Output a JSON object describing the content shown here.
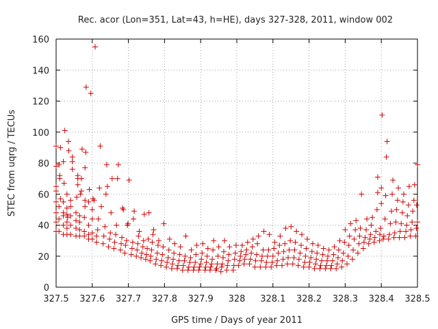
{
  "chart_data": {
    "type": "scatter",
    "title": "Rec. acor (Lon=351, Lat=43, h=HE), days 327-328, 2011, window 002",
    "xlabel": "GPS time / Days of year 2011",
    "ylabel": "STEC from uqrg / TECUs",
    "xlim": [
      327.5,
      328.5
    ],
    "ylim": [
      0,
      160
    ],
    "xticks": [
      327.5,
      327.6,
      327.7,
      327.8,
      327.9,
      328.0,
      328.1,
      328.2,
      328.3,
      328.4,
      328.5
    ],
    "xtick_labels": [
      "327.5",
      "327.6",
      "327.7",
      "327.8",
      "327.9",
      "328",
      "328.1",
      "328.2",
      "328.3",
      "328.4",
      "328.5"
    ],
    "yticks": [
      0,
      20,
      40,
      60,
      80,
      100,
      120,
      140,
      160
    ],
    "ytick_labels": [
      "0",
      "20",
      "40",
      "60",
      "80",
      "100",
      "120",
      "140",
      "160"
    ],
    "grid": true,
    "marker": "+",
    "color": "#cc0000",
    "points": [
      [
        327.5,
        36
      ],
      [
        327.5,
        42
      ],
      [
        327.5,
        48
      ],
      [
        327.5,
        55
      ],
      [
        327.5,
        62
      ],
      [
        327.5,
        65
      ],
      [
        327.5,
        78
      ],
      [
        327.5,
        91
      ],
      [
        327.508,
        36
      ],
      [
        327.508,
        44
      ],
      [
        327.508,
        52
      ],
      [
        327.508,
        79
      ],
      [
        327.51,
        72
      ],
      [
        327.51,
        70
      ],
      [
        327.512,
        57
      ],
      [
        327.512,
        90
      ],
      [
        327.52,
        34
      ],
      [
        327.52,
        40
      ],
      [
        327.52,
        46
      ],
      [
        327.52,
        48
      ],
      [
        327.52,
        55
      ],
      [
        327.52,
        81
      ],
      [
        327.522,
        67
      ],
      [
        327.524,
        101
      ],
      [
        327.53,
        34
      ],
      [
        327.53,
        38
      ],
      [
        327.53,
        42
      ],
      [
        327.53,
        47
      ],
      [
        327.53,
        51
      ],
      [
        327.53,
        60
      ],
      [
        327.532,
        45
      ],
      [
        327.534,
        94
      ],
      [
        327.535,
        88
      ],
      [
        327.54,
        34
      ],
      [
        327.54,
        40
      ],
      [
        327.54,
        46
      ],
      [
        327.54,
        52
      ],
      [
        327.54,
        56
      ],
      [
        327.545,
        76
      ],
      [
        327.545,
        81
      ],
      [
        327.545,
        84
      ],
      [
        327.555,
        33
      ],
      [
        327.555,
        38
      ],
      [
        327.555,
        43
      ],
      [
        327.555,
        48
      ],
      [
        327.557,
        58
      ],
      [
        327.56,
        66
      ],
      [
        327.56,
        70
      ],
      [
        327.56,
        72
      ],
      [
        327.565,
        33
      ],
      [
        327.565,
        37
      ],
      [
        327.565,
        42
      ],
      [
        327.565,
        46
      ],
      [
        327.567,
        60
      ],
      [
        327.57,
        62
      ],
      [
        327.57,
        70
      ],
      [
        327.572,
        89
      ],
      [
        327.578,
        33
      ],
      [
        327.578,
        36
      ],
      [
        327.578,
        45
      ],
      [
        327.58,
        52
      ],
      [
        327.58,
        56
      ],
      [
        327.58,
        77
      ],
      [
        327.582,
        87
      ],
      [
        327.583,
        129
      ],
      [
        327.59,
        31
      ],
      [
        327.59,
        34
      ],
      [
        327.59,
        40
      ],
      [
        327.59,
        55
      ],
      [
        327.592,
        63
      ],
      [
        327.596,
        125
      ],
      [
        327.6,
        31
      ],
      [
        327.6,
        35
      ],
      [
        327.6,
        44
      ],
      [
        327.6,
        50
      ],
      [
        327.602,
        57
      ],
      [
        327.608,
        155
      ],
      [
        327.605,
        56
      ],
      [
        327.612,
        29
      ],
      [
        327.612,
        33
      ],
      [
        327.615,
        37
      ],
      [
        327.617,
        44
      ],
      [
        327.62,
        64
      ],
      [
        327.622,
        91
      ],
      [
        327.625,
        52
      ],
      [
        327.63,
        28
      ],
      [
        327.632,
        33
      ],
      [
        327.635,
        39
      ],
      [
        327.638,
        60
      ],
      [
        327.64,
        79
      ],
      [
        327.642,
        65
      ],
      [
        327.645,
        26
      ],
      [
        327.648,
        31
      ],
      [
        327.65,
        35
      ],
      [
        327.652,
        48
      ],
      [
        327.655,
        70
      ],
      [
        327.66,
        25
      ],
      [
        327.662,
        29
      ],
      [
        327.665,
        34
      ],
      [
        327.667,
        40
      ],
      [
        327.67,
        70
      ],
      [
        327.672,
        79
      ],
      [
        327.678,
        24
      ],
      [
        327.68,
        28
      ],
      [
        327.682,
        32
      ],
      [
        327.684,
        51
      ],
      [
        327.686,
        50
      ],
      [
        327.69,
        22
      ],
      [
        327.692,
        27
      ],
      [
        327.695,
        30
      ],
      [
        327.697,
        40
      ],
      [
        327.699,
        41
      ],
      [
        327.702,
        69
      ],
      [
        327.708,
        21
      ],
      [
        327.71,
        25
      ],
      [
        327.712,
        29
      ],
      [
        327.714,
        44
      ],
      [
        327.716,
        49
      ],
      [
        327.722,
        20
      ],
      [
        327.724,
        24
      ],
      [
        327.726,
        28
      ],
      [
        327.728,
        33
      ],
      [
        327.73,
        36
      ],
      [
        327.735,
        19
      ],
      [
        327.737,
        22
      ],
      [
        327.74,
        26
      ],
      [
        327.742,
        30
      ],
      [
        327.744,
        47
      ],
      [
        327.748,
        18
      ],
      [
        327.75,
        21
      ],
      [
        327.752,
        25
      ],
      [
        327.755,
        31
      ],
      [
        327.757,
        48
      ],
      [
        327.76,
        17
      ],
      [
        327.762,
        20
      ],
      [
        327.764,
        24
      ],
      [
        327.766,
        29
      ],
      [
        327.768,
        34
      ],
      [
        327.77,
        37
      ],
      [
        327.775,
        15
      ],
      [
        327.777,
        18
      ],
      [
        327.78,
        22
      ],
      [
        327.782,
        27
      ],
      [
        327.784,
        30
      ],
      [
        327.79,
        14
      ],
      [
        327.792,
        17
      ],
      [
        327.794,
        21
      ],
      [
        327.796,
        26
      ],
      [
        327.798,
        41
      ],
      [
        327.805,
        13
      ],
      [
        327.807,
        16
      ],
      [
        327.81,
        19
      ],
      [
        327.812,
        24
      ],
      [
        327.814,
        31
      ],
      [
        327.82,
        12
      ],
      [
        327.822,
        15
      ],
      [
        327.824,
        18
      ],
      [
        327.826,
        22
      ],
      [
        327.828,
        28
      ],
      [
        327.835,
        12
      ],
      [
        327.837,
        14
      ],
      [
        327.84,
        17
      ],
      [
        327.842,
        21
      ],
      [
        327.844,
        26
      ],
      [
        327.85,
        11
      ],
      [
        327.852,
        14
      ],
      [
        327.855,
        17
      ],
      [
        327.857,
        20
      ],
      [
        327.859,
        33
      ],
      [
        327.865,
        11
      ],
      [
        327.867,
        13
      ],
      [
        327.87,
        16
      ],
      [
        327.872,
        19
      ],
      [
        327.874,
        24
      ],
      [
        327.88,
        11
      ],
      [
        327.882,
        13
      ],
      [
        327.885,
        16
      ],
      [
        327.887,
        21
      ],
      [
        327.889,
        27
      ],
      [
        327.895,
        11
      ],
      [
        327.897,
        13
      ],
      [
        327.9,
        15
      ],
      [
        327.902,
        18
      ],
      [
        327.904,
        22
      ],
      [
        327.906,
        28
      ],
      [
        327.912,
        11
      ],
      [
        327.914,
        13
      ],
      [
        327.916,
        16
      ],
      [
        327.918,
        20
      ],
      [
        327.92,
        25
      ],
      [
        327.926,
        11
      ],
      [
        327.928,
        13
      ],
      [
        327.93,
        15
      ],
      [
        327.932,
        18
      ],
      [
        327.934,
        24
      ],
      [
        327.936,
        30
      ],
      [
        327.942,
        11
      ],
      [
        327.944,
        12
      ],
      [
        327.946,
        15
      ],
      [
        327.948,
        20
      ],
      [
        327.95,
        26
      ],
      [
        327.956,
        10
      ],
      [
        327.958,
        13
      ],
      [
        327.96,
        15
      ],
      [
        327.962,
        19
      ],
      [
        327.964,
        23
      ],
      [
        327.966,
        30
      ],
      [
        327.972,
        11
      ],
      [
        327.974,
        14
      ],
      [
        327.976,
        17
      ],
      [
        327.978,
        21
      ],
      [
        327.98,
        26
      ],
      [
        327.99,
        11
      ],
      [
        327.992,
        14
      ],
      [
        327.994,
        18
      ],
      [
        327.996,
        22
      ],
      [
        327.998,
        27
      ],
      [
        328.005,
        14
      ],
      [
        328.008,
        17
      ],
      [
        328.01,
        20
      ],
      [
        328.012,
        23
      ],
      [
        328.015,
        27
      ],
      [
        328.02,
        15
      ],
      [
        328.022,
        18
      ],
      [
        328.025,
        21
      ],
      [
        328.027,
        24
      ],
      [
        328.03,
        29
      ],
      [
        328.035,
        15
      ],
      [
        328.038,
        18
      ],
      [
        328.04,
        22
      ],
      [
        328.043,
        26
      ],
      [
        328.045,
        31
      ],
      [
        328.05,
        13
      ],
      [
        328.052,
        17
      ],
      [
        328.055,
        21
      ],
      [
        328.057,
        28
      ],
      [
        328.06,
        33
      ],
      [
        328.065,
        13
      ],
      [
        328.068,
        17
      ],
      [
        328.07,
        20
      ],
      [
        328.073,
        24
      ],
      [
        328.075,
        36
      ],
      [
        328.08,
        13
      ],
      [
        328.082,
        16
      ],
      [
        328.085,
        20
      ],
      [
        328.088,
        24
      ],
      [
        328.09,
        34
      ],
      [
        328.095,
        13
      ],
      [
        328.098,
        16
      ],
      [
        328.1,
        20
      ],
      [
        328.103,
        25
      ],
      [
        328.105,
        29
      ],
      [
        328.11,
        14
      ],
      [
        328.112,
        17
      ],
      [
        328.115,
        22
      ],
      [
        328.118,
        27
      ],
      [
        328.12,
        33
      ],
      [
        328.125,
        14
      ],
      [
        328.128,
        18
      ],
      [
        328.13,
        23
      ],
      [
        328.133,
        28
      ],
      [
        328.135,
        38
      ],
      [
        328.14,
        15
      ],
      [
        328.142,
        19
      ],
      [
        328.145,
        24
      ],
      [
        328.148,
        30
      ],
      [
        328.15,
        39
      ],
      [
        328.155,
        15
      ],
      [
        328.158,
        19
      ],
      [
        328.16,
        24
      ],
      [
        328.162,
        29
      ],
      [
        328.165,
        36
      ],
      [
        328.17,
        14
      ],
      [
        328.172,
        18
      ],
      [
        328.175,
        22
      ],
      [
        328.178,
        27
      ],
      [
        328.18,
        34
      ],
      [
        328.185,
        13
      ],
      [
        328.188,
        16
      ],
      [
        328.19,
        20
      ],
      [
        328.192,
        25
      ],
      [
        328.195,
        31
      ],
      [
        328.2,
        13
      ],
      [
        328.202,
        16
      ],
      [
        328.205,
        19
      ],
      [
        328.208,
        23
      ],
      [
        328.21,
        28
      ],
      [
        328.215,
        12
      ],
      [
        328.218,
        15
      ],
      [
        328.22,
        18
      ],
      [
        328.222,
        22
      ],
      [
        328.225,
        27
      ],
      [
        328.23,
        12
      ],
      [
        328.232,
        14
      ],
      [
        328.235,
        17
      ],
      [
        328.238,
        21
      ],
      [
        328.24,
        25
      ],
      [
        328.245,
        12
      ],
      [
        328.248,
        14
      ],
      [
        328.25,
        17
      ],
      [
        328.252,
        20
      ],
      [
        328.255,
        24
      ],
      [
        328.26,
        12
      ],
      [
        328.262,
        14
      ],
      [
        328.265,
        17
      ],
      [
        328.268,
        21
      ],
      [
        328.27,
        26
      ],
      [
        328.275,
        12
      ],
      [
        328.278,
        15
      ],
      [
        328.28,
        19
      ],
      [
        328.282,
        24
      ],
      [
        328.285,
        30
      ],
      [
        328.29,
        13
      ],
      [
        328.292,
        17
      ],
      [
        328.295,
        22
      ],
      [
        328.298,
        29
      ],
      [
        328.3,
        37
      ],
      [
        328.305,
        15
      ],
      [
        328.308,
        20
      ],
      [
        328.31,
        27
      ],
      [
        328.312,
        33
      ],
      [
        328.315,
        41
      ],
      [
        328.32,
        18
      ],
      [
        328.322,
        24
      ],
      [
        328.325,
        31
      ],
      [
        328.328,
        37
      ],
      [
        328.33,
        43
      ],
      [
        328.335,
        22
      ],
      [
        328.338,
        28
      ],
      [
        328.34,
        33
      ],
      [
        328.342,
        38
      ],
      [
        328.345,
        60
      ],
      [
        328.35,
        25
      ],
      [
        328.352,
        29
      ],
      [
        328.355,
        32
      ],
      [
        328.358,
        37
      ],
      [
        328.36,
        44
      ],
      [
        328.365,
        28
      ],
      [
        328.368,
        31
      ],
      [
        328.37,
        34
      ],
      [
        328.372,
        40
      ],
      [
        328.375,
        45
      ],
      [
        328.38,
        29
      ],
      [
        328.382,
        32
      ],
      [
        328.385,
        36
      ],
      [
        328.388,
        50
      ],
      [
        328.39,
        61
      ],
      [
        328.39,
        71
      ],
      [
        328.395,
        30
      ],
      [
        328.396,
        34
      ],
      [
        328.398,
        38
      ],
      [
        328.4,
        54
      ],
      [
        328.4,
        64
      ],
      [
        328.402,
        111
      ],
      [
        328.405,
        31
      ],
      [
        328.407,
        33
      ],
      [
        328.41,
        44
      ],
      [
        328.412,
        59
      ],
      [
        328.414,
        84
      ],
      [
        328.416,
        94
      ],
      [
        328.42,
        31
      ],
      [
        328.422,
        34
      ],
      [
        328.425,
        41
      ],
      [
        328.428,
        49
      ],
      [
        328.43,
        60
      ],
      [
        328.432,
        69
      ],
      [
        328.435,
        32
      ],
      [
        328.437,
        35
      ],
      [
        328.44,
        42
      ],
      [
        328.442,
        50
      ],
      [
        328.445,
        56
      ],
      [
        328.447,
        64
      ],
      [
        328.45,
        32
      ],
      [
        328.452,
        36
      ],
      [
        328.455,
        41
      ],
      [
        328.458,
        48
      ],
      [
        328.46,
        55
      ],
      [
        328.462,
        60
      ],
      [
        328.465,
        32
      ],
      [
        328.468,
        36
      ],
      [
        328.47,
        40
      ],
      [
        328.472,
        46
      ],
      [
        328.475,
        53
      ],
      [
        328.477,
        65
      ],
      [
        328.48,
        33
      ],
      [
        328.482,
        37
      ],
      [
        328.485,
        42
      ],
      [
        328.487,
        49
      ],
      [
        328.49,
        56
      ],
      [
        328.492,
        66
      ],
      [
        328.495,
        33
      ],
      [
        328.497,
        38
      ],
      [
        328.498,
        53
      ],
      [
        328.5,
        79
      ],
      [
        328.5,
        42
      ]
    ]
  }
}
